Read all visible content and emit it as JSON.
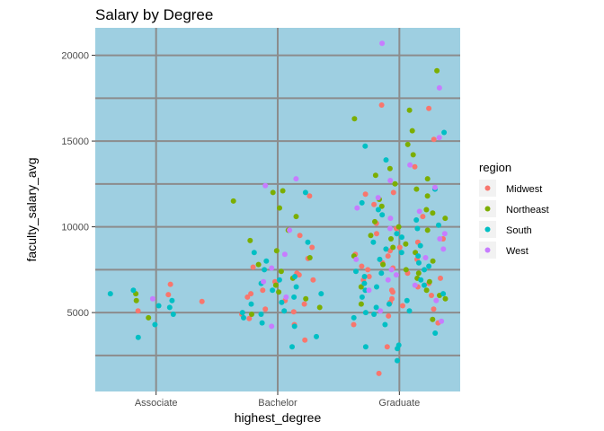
{
  "chart_data": {
    "type": "scatter",
    "title": "Salary by Degree",
    "xlabel": "highest_degree",
    "ylabel": "faculty_salary_avg",
    "categories": [
      "Associate",
      "Bachelor",
      "Graduate"
    ],
    "ylim": [
      400,
      21600
    ],
    "yticks": [
      5000,
      10000,
      15000,
      20000
    ],
    "grid": true,
    "jitter": true,
    "legend": {
      "title": "region",
      "placement": "right"
    },
    "colors": {
      "panel": "#9ecfe1",
      "grid": "#8c8c8c",
      "Midwest": "#F8766D",
      "Northeast": "#7CAE00",
      "South": "#00BFC4",
      "West": "#C77CFF"
    },
    "series": [
      {
        "name": "Midwest",
        "points": [
          {
            "x": "Associate",
            "y": 6650
          },
          {
            "x": "Associate",
            "y": 5100
          },
          {
            "x": "Associate",
            "y": 6050
          },
          {
            "x": "Associate",
            "y": 5650
          },
          {
            "x": "Bachelor",
            "y": 4300
          },
          {
            "x": "Bachelor",
            "y": 5050
          },
          {
            "x": "Bachelor",
            "y": 5900
          },
          {
            "x": "Bachelor",
            "y": 6900
          },
          {
            "x": "Bachelor",
            "y": 7300
          },
          {
            "x": "Bachelor",
            "y": 8150
          },
          {
            "x": "Bachelor",
            "y": 9500
          },
          {
            "x": "Bachelor",
            "y": 6300
          },
          {
            "x": "Bachelor",
            "y": 3400
          },
          {
            "x": "Bachelor",
            "y": 4650
          },
          {
            "x": "Bachelor",
            "y": 5700
          },
          {
            "x": "Bachelor",
            "y": 7650
          },
          {
            "x": "Bachelor",
            "y": 6100
          },
          {
            "x": "Bachelor",
            "y": 5500
          },
          {
            "x": "Bachelor",
            "y": 8800
          },
          {
            "x": "Bachelor",
            "y": 11800
          },
          {
            "x": "Bachelor",
            "y": 4900
          },
          {
            "x": "Bachelor",
            "y": 6800
          },
          {
            "x": "Bachelor",
            "y": 7200
          },
          {
            "x": "Bachelor",
            "y": 5200
          },
          {
            "x": "Graduate",
            "y": 1450
          },
          {
            "x": "Graduate",
            "y": 3000
          },
          {
            "x": "Graduate",
            "y": 4400
          },
          {
            "x": "Graduate",
            "y": 5200
          },
          {
            "x": "Graduate",
            "y": 5800
          },
          {
            "x": "Graduate",
            "y": 6200
          },
          {
            "x": "Graduate",
            "y": 6700
          },
          {
            "x": "Graduate",
            "y": 7100
          },
          {
            "x": "Graduate",
            "y": 7500
          },
          {
            "x": "Graduate",
            "y": 7900
          },
          {
            "x": "Graduate",
            "y": 8300
          },
          {
            "x": "Graduate",
            "y": 8800
          },
          {
            "x": "Graduate",
            "y": 9300
          },
          {
            "x": "Graduate",
            "y": 9900
          },
          {
            "x": "Graduate",
            "y": 10600
          },
          {
            "x": "Graduate",
            "y": 11300
          },
          {
            "x": "Graduate",
            "y": 12000
          },
          {
            "x": "Graduate",
            "y": 15100
          },
          {
            "x": "Graduate",
            "y": 16900
          },
          {
            "x": "Graduate",
            "y": 17100
          },
          {
            "x": "Graduate",
            "y": 5400
          },
          {
            "x": "Graduate",
            "y": 6000
          },
          {
            "x": "Graduate",
            "y": 6500
          },
          {
            "x": "Graduate",
            "y": 6900
          },
          {
            "x": "Graduate",
            "y": 7300
          },
          {
            "x": "Graduate",
            "y": 7700
          },
          {
            "x": "Graduate",
            "y": 8100
          },
          {
            "x": "Graduate",
            "y": 8600
          },
          {
            "x": "Graduate",
            "y": 9100
          },
          {
            "x": "Graduate",
            "y": 9600
          },
          {
            "x": "Graduate",
            "y": 4800
          },
          {
            "x": "Graduate",
            "y": 5600
          },
          {
            "x": "Graduate",
            "y": 6300
          },
          {
            "x": "Graduate",
            "y": 7000
          },
          {
            "x": "Graduate",
            "y": 7600
          },
          {
            "x": "Graduate",
            "y": 8400
          },
          {
            "x": "Graduate",
            "y": 10200
          },
          {
            "x": "Graduate",
            "y": 11900
          },
          {
            "x": "Graduate",
            "y": 13500
          },
          {
            "x": "Graduate",
            "y": 4300
          }
        ]
      },
      {
        "name": "Northeast",
        "points": [
          {
            "x": "Associate",
            "y": 5700
          },
          {
            "x": "Associate",
            "y": 6100
          },
          {
            "x": "Associate",
            "y": 4700
          },
          {
            "x": "Bachelor",
            "y": 4900
          },
          {
            "x": "Bachelor",
            "y": 5800
          },
          {
            "x": "Bachelor",
            "y": 6600
          },
          {
            "x": "Bachelor",
            "y": 7400
          },
          {
            "x": "Bachelor",
            "y": 8200
          },
          {
            "x": "Bachelor",
            "y": 9800
          },
          {
            "x": "Bachelor",
            "y": 10600
          },
          {
            "x": "Bachelor",
            "y": 11500
          },
          {
            "x": "Bachelor",
            "y": 12100
          },
          {
            "x": "Bachelor",
            "y": 12000
          },
          {
            "x": "Bachelor",
            "y": 6200
          },
          {
            "x": "Bachelor",
            "y": 7000
          },
          {
            "x": "Bachelor",
            "y": 7800
          },
          {
            "x": "Bachelor",
            "y": 8600
          },
          {
            "x": "Bachelor",
            "y": 5300
          },
          {
            "x": "Bachelor",
            "y": 9200
          },
          {
            "x": "Bachelor",
            "y": 11100
          },
          {
            "x": "Graduate",
            "y": 19100
          },
          {
            "x": "Graduate",
            "y": 16800
          },
          {
            "x": "Graduate",
            "y": 16300
          },
          {
            "x": "Graduate",
            "y": 15600
          },
          {
            "x": "Graduate",
            "y": 14200
          },
          {
            "x": "Graduate",
            "y": 13400
          },
          {
            "x": "Graduate",
            "y": 12800
          },
          {
            "x": "Graduate",
            "y": 12200
          },
          {
            "x": "Graduate",
            "y": 11600
          },
          {
            "x": "Graduate",
            "y": 11000
          },
          {
            "x": "Graduate",
            "y": 10500
          },
          {
            "x": "Graduate",
            "y": 10000
          },
          {
            "x": "Graduate",
            "y": 9500
          },
          {
            "x": "Graduate",
            "y": 9000
          },
          {
            "x": "Graduate",
            "y": 8500
          },
          {
            "x": "Graduate",
            "y": 8000
          },
          {
            "x": "Graduate",
            "y": 7500
          },
          {
            "x": "Graduate",
            "y": 7000
          },
          {
            "x": "Graduate",
            "y": 6500
          },
          {
            "x": "Graduate",
            "y": 6000
          },
          {
            "x": "Graduate",
            "y": 5500
          },
          {
            "x": "Graduate",
            "y": 13000
          },
          {
            "x": "Graduate",
            "y": 12500
          },
          {
            "x": "Graduate",
            "y": 11800
          },
          {
            "x": "Graduate",
            "y": 11200
          },
          {
            "x": "Graduate",
            "y": 10800
          },
          {
            "x": "Graduate",
            "y": 10300
          },
          {
            "x": "Graduate",
            "y": 9800
          },
          {
            "x": "Graduate",
            "y": 9300
          },
          {
            "x": "Graduate",
            "y": 8800
          },
          {
            "x": "Graduate",
            "y": 8300
          },
          {
            "x": "Graduate",
            "y": 7800
          },
          {
            "x": "Graduate",
            "y": 7300
          },
          {
            "x": "Graduate",
            "y": 6800
          },
          {
            "x": "Graduate",
            "y": 6300
          },
          {
            "x": "Graduate",
            "y": 5800
          },
          {
            "x": "Graduate",
            "y": 14800
          },
          {
            "x": "Graduate",
            "y": 4600
          }
        ]
      },
      {
        "name": "South",
        "points": [
          {
            "x": "Associate",
            "y": 3550
          },
          {
            "x": "Associate",
            "y": 6100
          },
          {
            "x": "Associate",
            "y": 6300
          },
          {
            "x": "Associate",
            "y": 5400
          },
          {
            "x": "Associate",
            "y": 5300
          },
          {
            "x": "Associate",
            "y": 4900
          },
          {
            "x": "Associate",
            "y": 5700
          },
          {
            "x": "Associate",
            "y": 4300
          },
          {
            "x": "Bachelor",
            "y": 3000
          },
          {
            "x": "Bachelor",
            "y": 3600
          },
          {
            "x": "Bachelor",
            "y": 4200
          },
          {
            "x": "Bachelor",
            "y": 4700
          },
          {
            "x": "Bachelor",
            "y": 5100
          },
          {
            "x": "Bachelor",
            "y": 5500
          },
          {
            "x": "Bachelor",
            "y": 5900
          },
          {
            "x": "Bachelor",
            "y": 6300
          },
          {
            "x": "Bachelor",
            "y": 6700
          },
          {
            "x": "Bachelor",
            "y": 7100
          },
          {
            "x": "Bachelor",
            "y": 7500
          },
          {
            "x": "Bachelor",
            "y": 8000
          },
          {
            "x": "Bachelor",
            "y": 8500
          },
          {
            "x": "Bachelor",
            "y": 4400
          },
          {
            "x": "Bachelor",
            "y": 5000
          },
          {
            "x": "Bachelor",
            "y": 5600
          },
          {
            "x": "Bachelor",
            "y": 6100
          },
          {
            "x": "Bachelor",
            "y": 6500
          },
          {
            "x": "Bachelor",
            "y": 6900
          },
          {
            "x": "Bachelor",
            "y": 9100
          },
          {
            "x": "Bachelor",
            "y": 12000
          },
          {
            "x": "Bachelor",
            "y": 4900
          },
          {
            "x": "Graduate",
            "y": 2200
          },
          {
            "x": "Graduate",
            "y": 2900
          },
          {
            "x": "Graduate",
            "y": 3000
          },
          {
            "x": "Graduate",
            "y": 3800
          },
          {
            "x": "Graduate",
            "y": 4300
          },
          {
            "x": "Graduate",
            "y": 4700
          },
          {
            "x": "Graduate",
            "y": 5100
          },
          {
            "x": "Graduate",
            "y": 5500
          },
          {
            "x": "Graduate",
            "y": 5900
          },
          {
            "x": "Graduate",
            "y": 6300
          },
          {
            "x": "Graduate",
            "y": 6700
          },
          {
            "x": "Graduate",
            "y": 7100
          },
          {
            "x": "Graduate",
            "y": 7500
          },
          {
            "x": "Graduate",
            "y": 7900
          },
          {
            "x": "Graduate",
            "y": 8300
          },
          {
            "x": "Graduate",
            "y": 8700
          },
          {
            "x": "Graduate",
            "y": 9100
          },
          {
            "x": "Graduate",
            "y": 9600
          },
          {
            "x": "Graduate",
            "y": 10100
          },
          {
            "x": "Graduate",
            "y": 10700
          },
          {
            "x": "Graduate",
            "y": 11400
          },
          {
            "x": "Graduate",
            "y": 12200
          },
          {
            "x": "Graduate",
            "y": 13900
          },
          {
            "x": "Graduate",
            "y": 15500
          },
          {
            "x": "Graduate",
            "y": 4900
          },
          {
            "x": "Graduate",
            "y": 5300
          },
          {
            "x": "Graduate",
            "y": 5700
          },
          {
            "x": "Graduate",
            "y": 6100
          },
          {
            "x": "Graduate",
            "y": 6500
          },
          {
            "x": "Graduate",
            "y": 6900
          },
          {
            "x": "Graduate",
            "y": 7300
          },
          {
            "x": "Graduate",
            "y": 7700
          },
          {
            "x": "Graduate",
            "y": 8100
          },
          {
            "x": "Graduate",
            "y": 8500
          },
          {
            "x": "Graduate",
            "y": 8900
          },
          {
            "x": "Graduate",
            "y": 9400
          },
          {
            "x": "Graduate",
            "y": 9900
          },
          {
            "x": "Graduate",
            "y": 10400
          },
          {
            "x": "Graduate",
            "y": 11000
          },
          {
            "x": "Graduate",
            "y": 5000
          },
          {
            "x": "Graduate",
            "y": 6600
          },
          {
            "x": "Graduate",
            "y": 7400
          },
          {
            "x": "Graduate",
            "y": 14700
          },
          {
            "x": "Graduate",
            "y": 3100
          }
        ]
      },
      {
        "name": "West",
        "points": [
          {
            "x": "Associate",
            "y": 5800
          },
          {
            "x": "Bachelor",
            "y": 12400
          },
          {
            "x": "Bachelor",
            "y": 12800
          },
          {
            "x": "Bachelor",
            "y": 9800
          },
          {
            "x": "Bachelor",
            "y": 8400
          },
          {
            "x": "Bachelor",
            "y": 6800
          },
          {
            "x": "Bachelor",
            "y": 7600
          },
          {
            "x": "Bachelor",
            "y": 4200
          },
          {
            "x": "Bachelor",
            "y": 5900
          },
          {
            "x": "Graduate",
            "y": 20700
          },
          {
            "x": "Graduate",
            "y": 18100
          },
          {
            "x": "Graduate",
            "y": 15200
          },
          {
            "x": "Graduate",
            "y": 13600
          },
          {
            "x": "Graduate",
            "y": 12700
          },
          {
            "x": "Graduate",
            "y": 12300
          },
          {
            "x": "Graduate",
            "y": 11700
          },
          {
            "x": "Graduate",
            "y": 11100
          },
          {
            "x": "Graduate",
            "y": 10500
          },
          {
            "x": "Graduate",
            "y": 9900
          },
          {
            "x": "Graduate",
            "y": 9300
          },
          {
            "x": "Graduate",
            "y": 8700
          },
          {
            "x": "Graduate",
            "y": 8100
          },
          {
            "x": "Graduate",
            "y": 7500
          },
          {
            "x": "Graduate",
            "y": 6900
          },
          {
            "x": "Graduate",
            "y": 6300
          },
          {
            "x": "Graduate",
            "y": 5700
          },
          {
            "x": "Graduate",
            "y": 5100
          },
          {
            "x": "Graduate",
            "y": 4500
          },
          {
            "x": "Graduate",
            "y": 10900
          },
          {
            "x": "Graduate",
            "y": 9600
          },
          {
            "x": "Graduate",
            "y": 8200
          },
          {
            "x": "Graduate",
            "y": 7200
          },
          {
            "x": "Graduate",
            "y": 6600
          }
        ]
      }
    ]
  }
}
